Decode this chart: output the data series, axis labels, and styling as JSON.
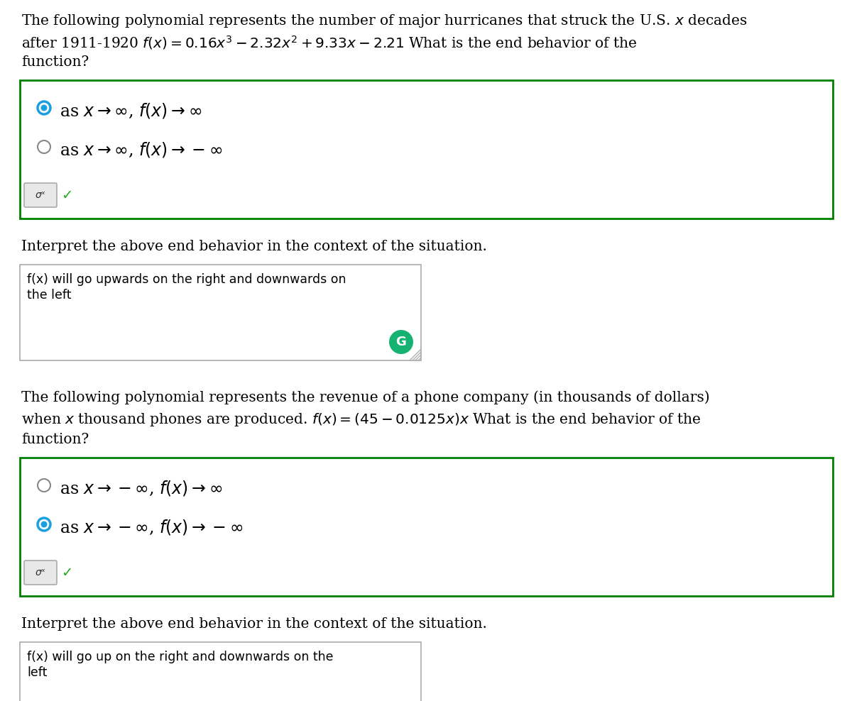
{
  "bg_color": "#ffffff",
  "text_color": "#000000",
  "green_border_color": "#008000",
  "radio_selected_color": "#1a9fe0",
  "radio_unselected_color": "#888888",
  "checkmark_color": "#22aa22",
  "grammarly_color": "#15b371",
  "textarea_border_color": "#aaaaaa",
  "resize_color": "#aaaaaa",
  "submit_border_color": "#aaaaaa",
  "submit_fill_color": "#e8e8e8",
  "q1_line1": "The following polynomial represents the number of major hurricanes that struck the U.S. $x$ decades",
  "q1_line2": "after 1911-1920 $f(x) = 0.16x^3 - 2.32x^2 + 9.33x - 2.21$ What is the end behavior of the",
  "q1_line3": "function?",
  "q1_opt1": "as $x \\rightarrow \\infty$, $f(x) \\rightarrow \\infty$",
  "q1_opt1_sel": true,
  "q1_opt2": "as $x \\rightarrow \\infty$, $f(x) \\rightarrow -\\infty$",
  "q1_opt2_sel": false,
  "interp_label1": "Interpret the above end behavior in the context of the situation.",
  "q1_ta_line1": "f(x) will go upwards on the right and downwards on",
  "q1_ta_line2": "the left",
  "q2_line1": "The following polynomial represents the revenue of a phone company (in thousands of dollars)",
  "q2_line2": "when $x$ thousand phones are produced. $f(x) = (45 - 0.0125x)x$ What is the end behavior of the",
  "q2_line3": "function?",
  "q2_opt1": "as $x \\rightarrow -\\infty$, $f(x) \\rightarrow \\infty$",
  "q2_opt1_sel": false,
  "q2_opt2": "as $x \\rightarrow -\\infty$, $f(x) \\rightarrow -\\infty$",
  "q2_opt2_sel": true,
  "interp_label2": "Interpret the above end behavior in the context of the situation.",
  "q2_ta_line1": "f(x) will go up on the right and downwards on the",
  "q2_ta_line2": "left",
  "font_size_body": 14.5,
  "font_size_option": 17,
  "font_size_mono": 12.5
}
